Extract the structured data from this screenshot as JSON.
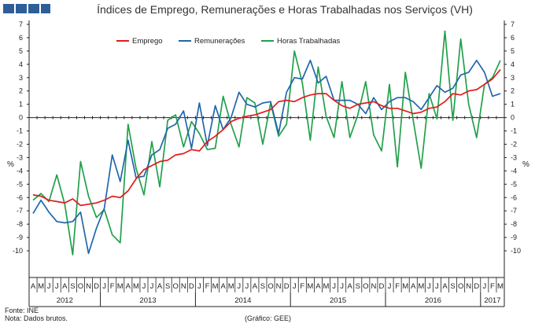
{
  "colors": {
    "header_block": "#2E5E98",
    "emprego": "#E31A1C",
    "remuneracoes": "#2166AC",
    "horas": "#22A04B"
  },
  "footer": {
    "fonte": "Fonte: INE",
    "nota": "Nota: Dados brutos.",
    "grafico": "(Gráfico: GEE)"
  },
  "chart_data": {
    "type": "line",
    "title": "Índices de Emprego,  Remunerações  e Horas Trabalhadas  nos Serviços (VH)",
    "ylabel_left": "%",
    "ylabel_right": "%",
    "ylim": [
      -11,
      7
    ],
    "yticks": [
      -10,
      -9,
      -8,
      -7,
      -6,
      -5,
      -4,
      -3,
      -2,
      -1,
      0,
      1,
      2,
      3,
      4,
      5,
      6,
      7
    ],
    "grid": false,
    "legend_position": "top-left",
    "month_labels": [
      "A",
      "M",
      "J",
      "J",
      "A",
      "S",
      "O",
      "N",
      "D",
      "J",
      "F",
      "M",
      "A",
      "M",
      "J",
      "J",
      "A",
      "S",
      "O",
      "N",
      "D",
      "J",
      "F",
      "M",
      "A",
      "M",
      "J",
      "J",
      "A",
      "S",
      "O",
      "N",
      "D",
      "J",
      "F",
      "M",
      "A",
      "M",
      "J",
      "J",
      "A",
      "S",
      "O",
      "N",
      "D",
      "J",
      "F",
      "M",
      "A",
      "M",
      "J",
      "J",
      "A",
      "S",
      "O",
      "N",
      "D",
      "J",
      "F",
      "M"
    ],
    "years": [
      {
        "label": "2012",
        "first": 0,
        "last": 8
      },
      {
        "label": "2013",
        "first": 9,
        "last": 20
      },
      {
        "label": "2014",
        "first": 21,
        "last": 32
      },
      {
        "label": "2015",
        "first": 33,
        "last": 44
      },
      {
        "label": "2016",
        "first": 45,
        "last": 56
      },
      {
        "label": "2017",
        "first": 57,
        "last": 59
      }
    ],
    "series": [
      {
        "name": "Emprego",
        "axis": "left",
        "color": "#E31A1C",
        "values": [
          -5.8,
          -5.9,
          -6.2,
          -6.3,
          -6.4,
          -6.1,
          -6.6,
          -6.5,
          -6.4,
          -6.2,
          -5.9,
          -6.0,
          -5.5,
          -4.6,
          -3.9,
          -3.6,
          -3.3,
          -3.2,
          -2.8,
          -2.7,
          -2.4,
          -2.5,
          -1.8,
          -1.4,
          -0.9,
          -0.3,
          -0.05,
          0.1,
          0.2,
          0.4,
          0.6,
          1.2,
          1.3,
          1.2,
          1.5,
          1.7,
          1.8,
          1.8,
          1.3,
          0.9,
          0.7,
          1.0,
          1.1,
          1.2,
          0.9,
          0.7,
          0.7,
          0.5,
          0.3,
          0.4,
          0.7,
          0.8,
          1.2,
          1.8,
          1.7,
          2.0,
          2.1,
          2.5,
          2.9,
          3.6
        ]
      },
      {
        "name": "Remunerações",
        "axis": "left",
        "color": "#2166AC",
        "values": [
          -7.2,
          -6.2,
          -7.1,
          -7.8,
          -7.9,
          -7.8,
          -7.1,
          -10.2,
          -8.3,
          -6.8,
          -2.8,
          -4.8,
          -1.7,
          -4.5,
          -4.4,
          -2.8,
          -2.4,
          -0.8,
          -0.5,
          0.5,
          -2.3,
          1.1,
          -2.1,
          0.9,
          -0.9,
          0.0,
          1.9,
          1.0,
          0.8,
          1.1,
          1.2,
          -1.2,
          1.9,
          3.0,
          2.9,
          4.3,
          2.6,
          3.1,
          1.3,
          1.3,
          1.3,
          1.0,
          0.3,
          1.5,
          0.6,
          1.2,
          1.5,
          1.5,
          1.2,
          0.6,
          1.5,
          2.4,
          1.9,
          2.2,
          3.2,
          3.4,
          4.3,
          3.4,
          1.6,
          1.8
        ]
      },
      {
        "name": "Horas Trabalhadas",
        "axis": "right",
        "color": "#22A04B",
        "values": [
          -6.2,
          -5.7,
          -6.3,
          -4.3,
          -6.5,
          -10.3,
          -3.3,
          -5.9,
          -7.5,
          -6.9,
          -8.8,
          -9.4,
          -0.5,
          -3.8,
          -5.8,
          -1.8,
          -5.2,
          -0.2,
          0.2,
          -2.2,
          -0.3,
          -1.2,
          -2.4,
          -2.3,
          1.6,
          -0.5,
          -2.2,
          1.5,
          1.1,
          -2.0,
          1.1,
          -1.4,
          -0.5,
          5.0,
          2.6,
          -1.7,
          3.8,
          0.1,
          -1.5,
          2.7,
          -1.5,
          0.2,
          2.7,
          -1.3,
          -2.5,
          2.5,
          -3.7,
          3.4,
          -0.2,
          -3.8,
          1.8,
          -0.1,
          6.5,
          -0.2,
          5.9,
          1.0,
          -1.5,
          2.5,
          3.0,
          4.3
        ]
      }
    ]
  }
}
